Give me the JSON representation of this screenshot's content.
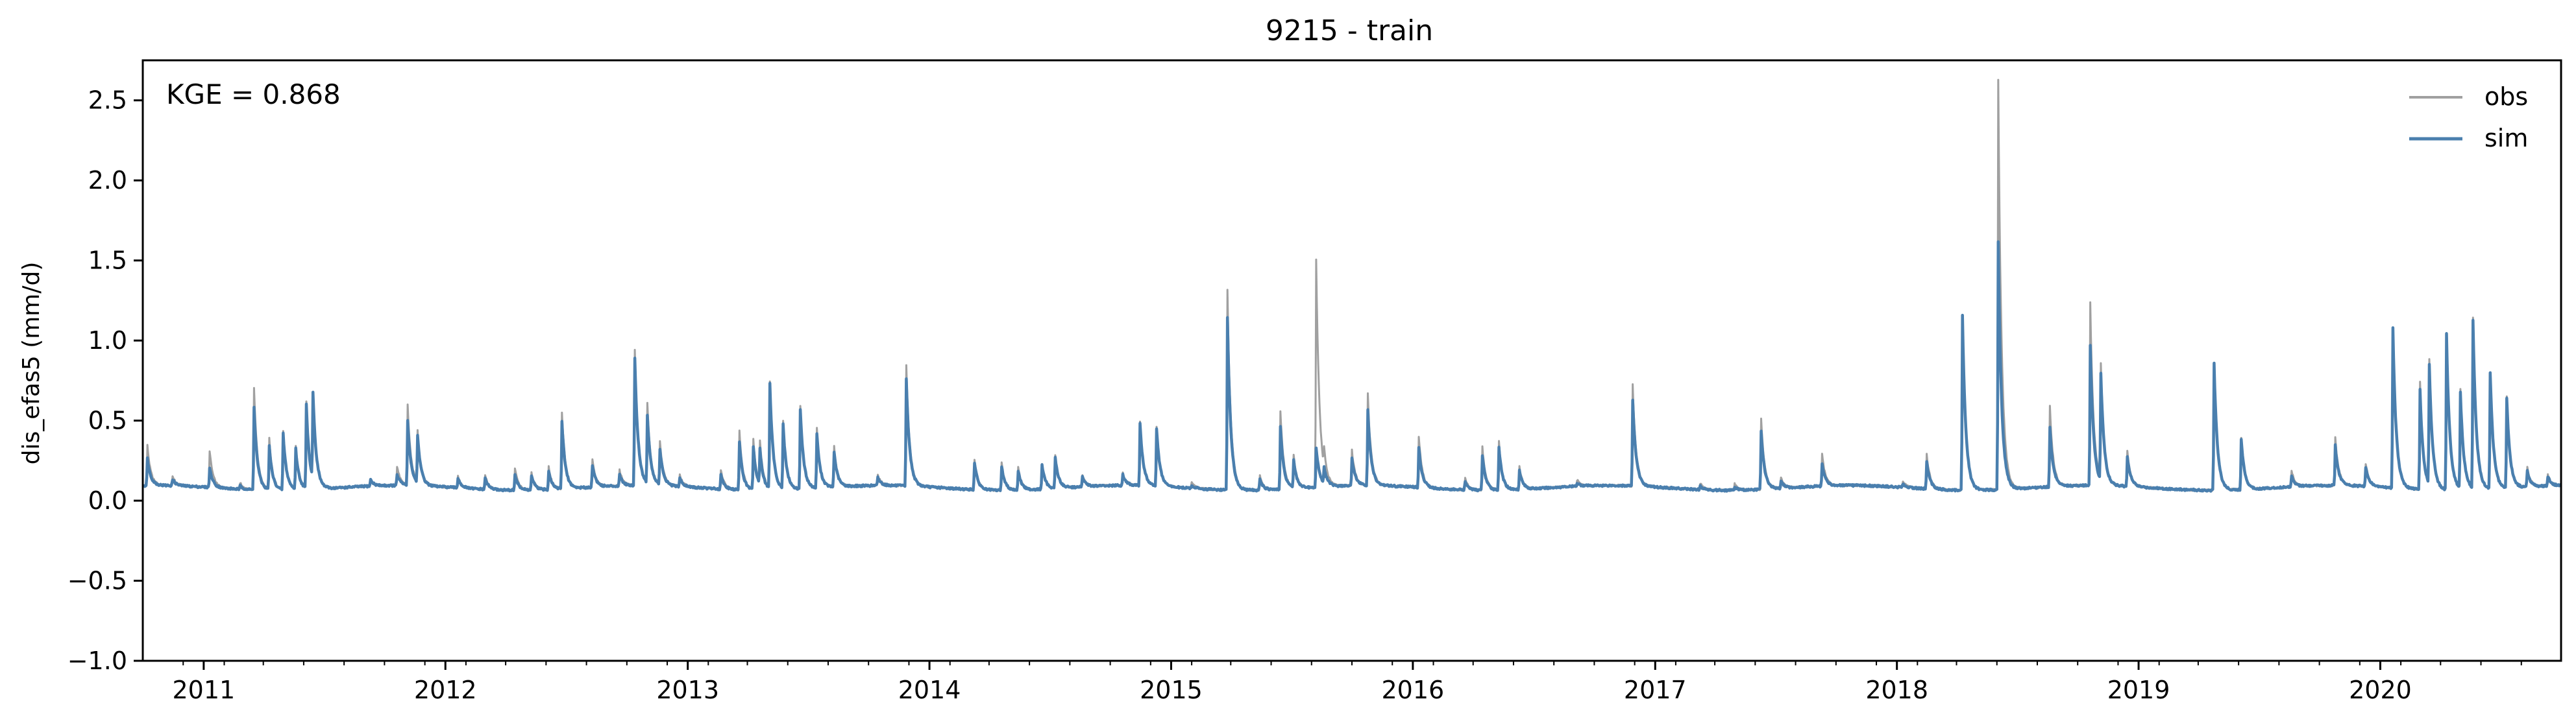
{
  "chart_data": {
    "type": "line",
    "title": "9215 - train",
    "xlabel": "",
    "ylabel": "dis_efas5 (mm/d)",
    "annotation": "KGE = 0.868",
    "xlim": [
      "2010-10-01",
      "2020-09-30"
    ],
    "ylim": [
      -1.0,
      2.75
    ],
    "yticks": [
      -1.0,
      -0.5,
      0.0,
      0.5,
      1.0,
      1.5,
      2.0,
      2.5
    ],
    "ytick_labels": [
      "−1.0",
      "−0.5",
      "0.0",
      "0.5",
      "1.0",
      "1.5",
      "2.0",
      "2.5"
    ],
    "xticks": [
      "2011-01-01",
      "2012-01-01",
      "2013-01-01",
      "2014-01-01",
      "2015-01-01",
      "2016-01-01",
      "2017-01-01",
      "2018-01-01",
      "2019-01-01",
      "2020-01-01"
    ],
    "xtick_labels": [
      "2011",
      "2012",
      "2013",
      "2014",
      "2015",
      "2016",
      "2017",
      "2018",
      "2019",
      "2020"
    ],
    "legend_position": "top-right",
    "grid": false,
    "baseflow": 0.08,
    "series": [
      {
        "name": "obs",
        "color": "#a0a0a0",
        "peaks": [
          [
            "2010-10-08",
            0.33
          ],
          [
            "2010-11-15",
            0.14
          ],
          [
            "2011-01-10",
            0.31
          ],
          [
            "2011-02-25",
            0.12
          ],
          [
            "2011-03-18",
            0.72
          ],
          [
            "2011-04-10",
            0.4
          ],
          [
            "2011-05-01",
            0.45
          ],
          [
            "2011-05-20",
            0.35
          ],
          [
            "2011-06-05",
            0.62
          ],
          [
            "2011-06-15",
            0.6
          ],
          [
            "2011-09-10",
            0.12
          ],
          [
            "2011-10-20",
            0.2
          ],
          [
            "2011-11-05",
            0.58
          ],
          [
            "2011-11-20",
            0.4
          ],
          [
            "2012-01-20",
            0.15
          ],
          [
            "2012-03-01",
            0.17
          ],
          [
            "2012-04-15",
            0.22
          ],
          [
            "2012-05-10",
            0.19
          ],
          [
            "2012-06-05",
            0.22
          ],
          [
            "2012-06-25",
            0.56
          ],
          [
            "2012-08-10",
            0.25
          ],
          [
            "2012-09-20",
            0.18
          ],
          [
            "2012-10-13",
            0.92
          ],
          [
            "2012-11-01",
            0.58
          ],
          [
            "2012-11-20",
            0.35
          ],
          [
            "2012-12-20",
            0.15
          ],
          [
            "2013-02-20",
            0.2
          ],
          [
            "2013-03-20",
            0.45
          ],
          [
            "2013-04-10",
            0.4
          ],
          [
            "2013-04-20",
            0.35
          ],
          [
            "2013-05-05",
            0.74
          ],
          [
            "2013-05-25",
            0.5
          ],
          [
            "2013-06-20",
            0.6
          ],
          [
            "2013-07-15",
            0.45
          ],
          [
            "2013-08-10",
            0.33
          ],
          [
            "2013-10-15",
            0.15
          ],
          [
            "2013-11-27",
            0.84
          ],
          [
            "2014-03-10",
            0.27
          ],
          [
            "2014-04-20",
            0.25
          ],
          [
            "2014-05-15",
            0.22
          ],
          [
            "2014-06-20",
            0.24
          ],
          [
            "2014-07-10",
            0.28
          ],
          [
            "2014-08-20",
            0.15
          ],
          [
            "2014-10-20",
            0.16
          ],
          [
            "2014-11-15",
            0.48
          ],
          [
            "2014-12-10",
            0.45
          ],
          [
            "2015-02-01",
            0.12
          ],
          [
            "2015-03-27",
            1.33
          ],
          [
            "2015-05-15",
            0.17
          ],
          [
            "2015-06-15",
            0.57
          ],
          [
            "2015-07-05",
            0.28
          ],
          [
            "2015-08-08",
            1.5
          ],
          [
            "2015-08-20",
            0.2
          ],
          [
            "2015-10-01",
            0.3
          ],
          [
            "2015-10-25",
            0.65
          ],
          [
            "2016-01-10",
            0.4
          ],
          [
            "2016-03-20",
            0.15
          ],
          [
            "2016-04-15",
            0.35
          ],
          [
            "2016-05-10",
            0.38
          ],
          [
            "2016-06-10",
            0.22
          ],
          [
            "2016-09-05",
            0.12
          ],
          [
            "2016-11-28",
            0.71
          ],
          [
            "2017-03-10",
            0.12
          ],
          [
            "2017-05-01",
            0.12
          ],
          [
            "2017-06-10",
            0.52
          ],
          [
            "2017-07-10",
            0.15
          ],
          [
            "2017-09-10",
            0.28
          ],
          [
            "2018-01-10",
            0.12
          ],
          [
            "2018-02-15",
            0.3
          ],
          [
            "2018-04-10",
            1.17
          ],
          [
            "2018-06-03",
            2.64
          ],
          [
            "2018-08-20",
            0.58
          ],
          [
            "2018-10-20",
            1.22
          ],
          [
            "2018-11-05",
            0.8
          ],
          [
            "2018-12-15",
            0.3
          ],
          [
            "2019-04-25",
            0.87
          ],
          [
            "2019-06-05",
            0.4
          ],
          [
            "2019-08-20",
            0.18
          ],
          [
            "2019-10-25",
            0.38
          ],
          [
            "2019-12-10",
            0.22
          ],
          [
            "2020-01-20",
            1.07
          ],
          [
            "2020-03-01",
            0.75
          ],
          [
            "2020-03-15",
            0.85
          ],
          [
            "2020-04-10",
            1.05
          ],
          [
            "2020-05-01",
            0.7
          ],
          [
            "2020-05-20",
            1.14
          ],
          [
            "2020-06-15",
            0.8
          ],
          [
            "2020-07-10",
            0.65
          ],
          [
            "2020-08-10",
            0.2
          ],
          [
            "2020-09-10",
            0.15
          ]
        ]
      },
      {
        "name": "sim",
        "color": "#4a7fae",
        "peaks": [
          [
            "2010-10-08",
            0.25
          ],
          [
            "2010-11-15",
            0.12
          ],
          [
            "2011-01-10",
            0.2
          ],
          [
            "2011-02-25",
            0.1
          ],
          [
            "2011-03-18",
            0.6
          ],
          [
            "2011-04-10",
            0.35
          ],
          [
            "2011-05-01",
            0.43
          ],
          [
            "2011-05-20",
            0.33
          ],
          [
            "2011-06-05",
            0.6
          ],
          [
            "2011-06-15",
            0.62
          ],
          [
            "2011-09-10",
            0.12
          ],
          [
            "2011-10-20",
            0.15
          ],
          [
            "2011-11-05",
            0.48
          ],
          [
            "2011-11-20",
            0.38
          ],
          [
            "2012-01-20",
            0.14
          ],
          [
            "2012-03-01",
            0.15
          ],
          [
            "2012-04-15",
            0.18
          ],
          [
            "2012-05-10",
            0.17
          ],
          [
            "2012-06-05",
            0.2
          ],
          [
            "2012-06-25",
            0.5
          ],
          [
            "2012-08-10",
            0.22
          ],
          [
            "2012-09-20",
            0.15
          ],
          [
            "2012-10-13",
            0.88
          ],
          [
            "2012-11-01",
            0.5
          ],
          [
            "2012-11-20",
            0.3
          ],
          [
            "2012-12-20",
            0.13
          ],
          [
            "2013-02-20",
            0.17
          ],
          [
            "2013-03-20",
            0.38
          ],
          [
            "2013-04-10",
            0.35
          ],
          [
            "2013-04-20",
            0.3
          ],
          [
            "2013-05-05",
            0.73
          ],
          [
            "2013-05-25",
            0.48
          ],
          [
            "2013-06-20",
            0.58
          ],
          [
            "2013-07-15",
            0.42
          ],
          [
            "2013-08-10",
            0.3
          ],
          [
            "2013-10-15",
            0.13
          ],
          [
            "2013-11-27",
            0.75
          ],
          [
            "2014-03-10",
            0.25
          ],
          [
            "2014-04-20",
            0.23
          ],
          [
            "2014-05-15",
            0.2
          ],
          [
            "2014-06-20",
            0.23
          ],
          [
            "2014-07-10",
            0.27
          ],
          [
            "2014-08-20",
            0.14
          ],
          [
            "2014-10-20",
            0.15
          ],
          [
            "2014-11-15",
            0.47
          ],
          [
            "2014-12-10",
            0.44
          ],
          [
            "2015-02-01",
            0.1
          ],
          [
            "2015-03-27",
            1.16
          ],
          [
            "2015-05-15",
            0.15
          ],
          [
            "2015-06-15",
            0.47
          ],
          [
            "2015-07-05",
            0.25
          ],
          [
            "2015-08-08",
            0.33
          ],
          [
            "2015-08-20",
            0.18
          ],
          [
            "2015-10-01",
            0.25
          ],
          [
            "2015-10-25",
            0.55
          ],
          [
            "2016-01-10",
            0.33
          ],
          [
            "2016-03-20",
            0.13
          ],
          [
            "2016-04-15",
            0.3
          ],
          [
            "2016-05-10",
            0.35
          ],
          [
            "2016-06-10",
            0.2
          ],
          [
            "2016-09-05",
            0.1
          ],
          [
            "2016-11-28",
            0.62
          ],
          [
            "2017-03-10",
            0.1
          ],
          [
            "2017-05-01",
            0.1
          ],
          [
            "2017-06-10",
            0.45
          ],
          [
            "2017-07-10",
            0.13
          ],
          [
            "2017-09-10",
            0.22
          ],
          [
            "2018-01-10",
            0.1
          ],
          [
            "2018-02-15",
            0.25
          ],
          [
            "2018-04-10",
            1.17
          ],
          [
            "2018-06-03",
            1.63
          ],
          [
            "2018-08-20",
            0.45
          ],
          [
            "2018-10-20",
            0.96
          ],
          [
            "2018-11-05",
            0.75
          ],
          [
            "2018-12-15",
            0.27
          ],
          [
            "2019-04-25",
            0.87
          ],
          [
            "2019-06-05",
            0.4
          ],
          [
            "2019-08-20",
            0.15
          ],
          [
            "2019-10-25",
            0.33
          ],
          [
            "2019-12-10",
            0.2
          ],
          [
            "2020-01-20",
            1.08
          ],
          [
            "2020-03-01",
            0.7
          ],
          [
            "2020-03-15",
            0.83
          ],
          [
            "2020-04-10",
            1.05
          ],
          [
            "2020-05-01",
            0.68
          ],
          [
            "2020-05-20",
            1.13
          ],
          [
            "2020-06-15",
            0.8
          ],
          [
            "2020-07-10",
            0.64
          ],
          [
            "2020-08-10",
            0.18
          ],
          [
            "2020-09-10",
            0.14
          ]
        ]
      }
    ]
  }
}
